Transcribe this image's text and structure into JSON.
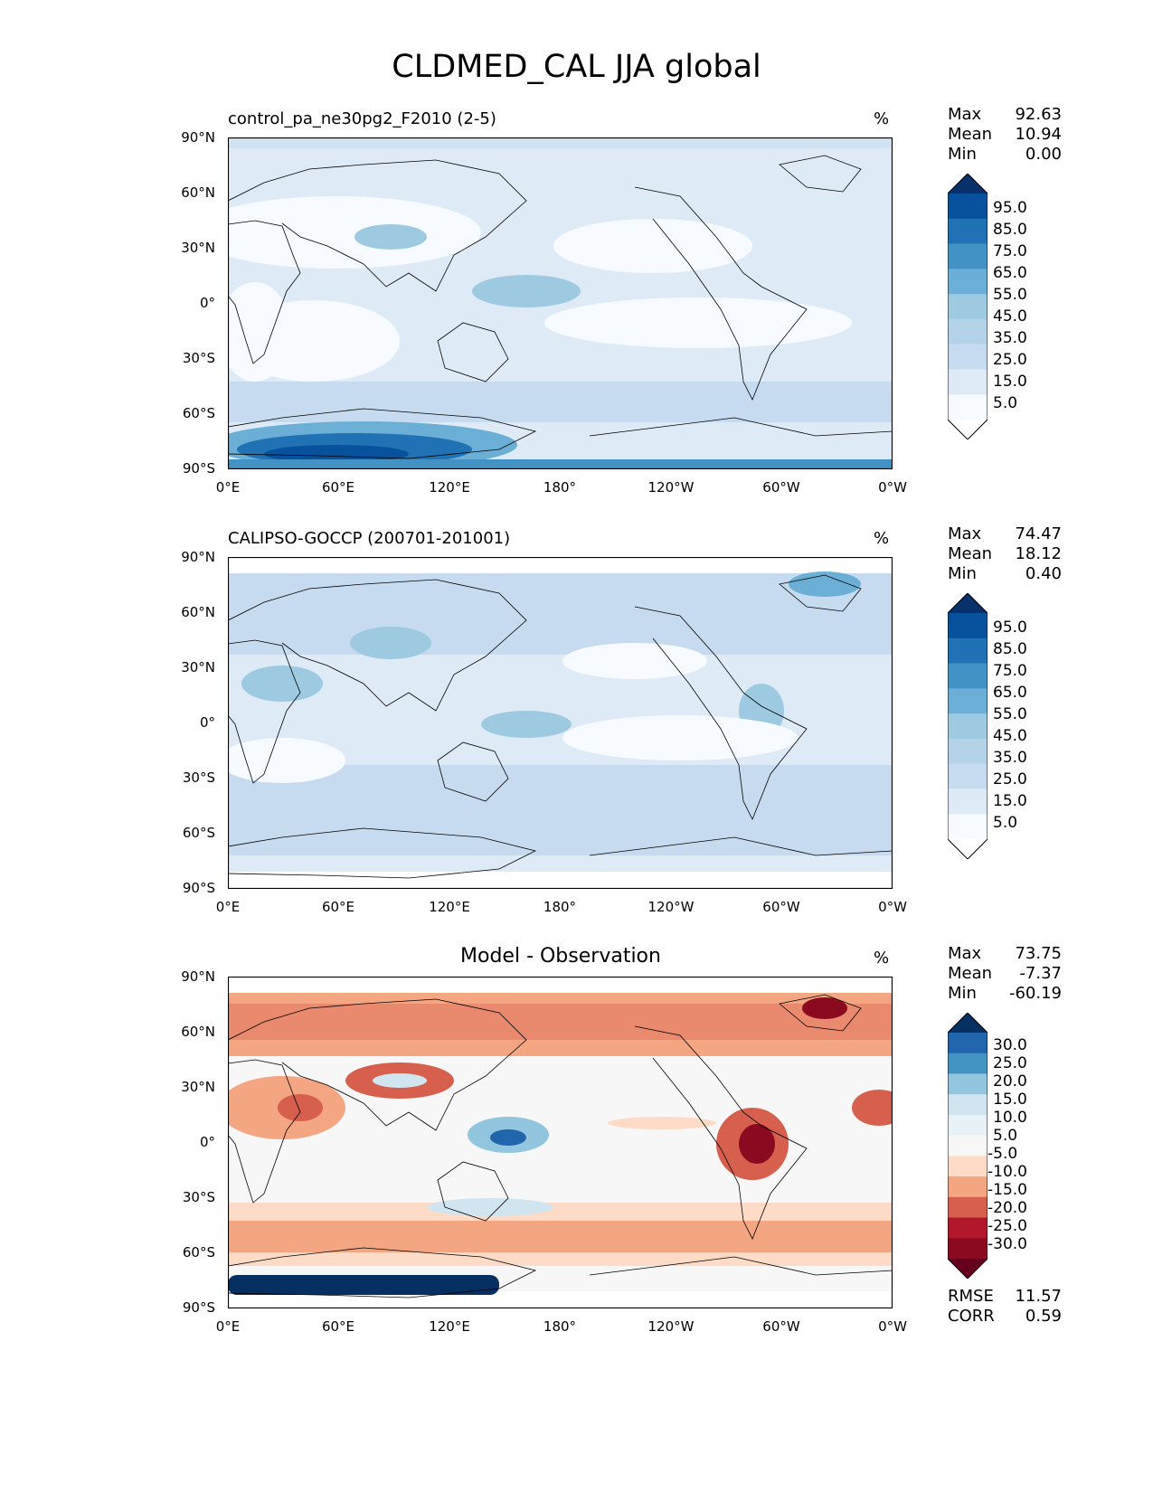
{
  "figure": {
    "title": "CLDMED_CAL JJA global"
  },
  "lat_ticks": [
    "90°N",
    "60°N",
    "30°N",
    "0°",
    "30°S",
    "60°S",
    "90°S"
  ],
  "lon_ticks": [
    "0°E",
    "60°E",
    "120°E",
    "180°",
    "120°W",
    "60°W",
    "0°W"
  ],
  "chart_data": [
    {
      "type": "heatmap",
      "title": "control_pa_ne30pg2_F2010 (2-5)",
      "units": "%",
      "stats": {
        "max_label": "Max",
        "max": "92.63",
        "mean_label": "Mean",
        "mean": "10.94",
        "min_label": "Min",
        "min": "0.00"
      },
      "xlim": [
        0,
        360
      ],
      "ylim": [
        -90,
        90
      ],
      "colorbar": {
        "labels": [
          "95.0",
          "85.0",
          "75.0",
          "65.0",
          "55.0",
          "45.0",
          "35.0",
          "25.0",
          "15.0",
          "5.0"
        ],
        "colors": [
          "#08306b",
          "#08519c",
          "#2171b5",
          "#4292c6",
          "#6baed6",
          "#9ecae1",
          "#b4d3e9",
          "#c6dbef",
          "#deebf7",
          "#f7fbff",
          "#ffffff"
        ]
      }
    },
    {
      "type": "heatmap",
      "title": "CALIPSO-GOCCP (200701-201001)",
      "units": "%",
      "stats": {
        "max_label": "Max",
        "max": "74.47",
        "mean_label": "Mean",
        "mean": "18.12",
        "min_label": "Min",
        "min": "0.40"
      },
      "xlim": [
        0,
        360
      ],
      "ylim": [
        -90,
        90
      ],
      "colorbar": {
        "labels": [
          "95.0",
          "85.0",
          "75.0",
          "65.0",
          "55.0",
          "45.0",
          "35.0",
          "25.0",
          "15.0",
          "5.0"
        ],
        "colors": [
          "#08306b",
          "#08519c",
          "#2171b5",
          "#4292c6",
          "#6baed6",
          "#9ecae1",
          "#b4d3e9",
          "#c6dbef",
          "#deebf7",
          "#f7fbff",
          "#ffffff"
        ]
      }
    },
    {
      "type": "heatmap",
      "title": "Model - Observation",
      "units": "%",
      "stats": {
        "max_label": "Max",
        "max": "73.75",
        "mean_label": "Mean",
        "mean": "-7.37",
        "min_label": "Min",
        "min": "-60.19"
      },
      "extra_stats": {
        "rmse_label": "RMSE",
        "rmse": "11.57",
        "corr_label": "CORR",
        "corr": "0.59"
      },
      "xlim": [
        0,
        360
      ],
      "ylim": [
        -90,
        90
      ],
      "colorbar": {
        "labels": [
          "30.0",
          "25.0",
          "20.0",
          "15.0",
          "10.0",
          "5.0",
          "-5.0",
          "-10.0",
          "-15.0",
          "-20.0",
          "-25.0",
          "-30.0"
        ],
        "colors": [
          "#053061",
          "#2166ac",
          "#4393c3",
          "#92c5de",
          "#d1e5f0",
          "#e8f1f6",
          "#f7f7f7",
          "#fddbc7",
          "#f4a582",
          "#d6604d",
          "#b2182b",
          "#8b0a1f",
          "#67001f"
        ]
      }
    }
  ]
}
